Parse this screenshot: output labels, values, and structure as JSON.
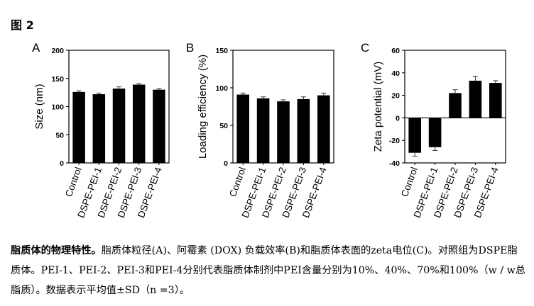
{
  "figure": {
    "title": "图 2"
  },
  "chart_data": [
    {
      "panel_label": "A",
      "type": "bar",
      "categories": [
        "Control",
        "DSPE-PEI-1",
        "DSPE-PEI-2",
        "DSPE-PEI-3",
        "DSPE-PEI-4"
      ],
      "values": [
        126,
        122,
        132,
        139,
        130
      ],
      "errors": [
        2,
        2,
        3,
        2,
        2
      ],
      "ylabel": "Size (nm)",
      "ylim": [
        0,
        200
      ],
      "yticks": [
        0,
        50,
        100,
        150,
        200
      ],
      "bar_color": "#000000"
    },
    {
      "panel_label": "B",
      "type": "bar",
      "categories": [
        "Control",
        "DSPE-PEI-1",
        "DSPE-PEI-2",
        "DSPE-PEI-3",
        "DSPE-PEI-4"
      ],
      "values": [
        91,
        86,
        82,
        85,
        90
      ],
      "errors": [
        2,
        2,
        2,
        3,
        3
      ],
      "ylabel": "Loading efficiency (%)",
      "ylim": [
        0,
        150
      ],
      "yticks": [
        0,
        50,
        100,
        150
      ],
      "bar_color": "#000000"
    },
    {
      "panel_label": "C",
      "type": "bar",
      "categories": [
        "Control",
        "DSPE-PEI-1",
        "DSPE-PEI-2",
        "DSPE-PEI-3",
        "DSPE-PEI-4"
      ],
      "values": [
        -31,
        -26,
        22,
        33,
        31
      ],
      "errors": [
        3,
        3,
        3,
        4,
        2
      ],
      "ylabel": "Zeta potential (mV)",
      "ylim": [
        -40,
        60
      ],
      "yticks": [
        -40,
        -20,
        0,
        20,
        40,
        60
      ],
      "bar_color": "#000000"
    }
  ],
  "caption": {
    "lead": "脂质体的物理特性。",
    "body": "脂质体粒径(A)、阿霉素 (DOX) 负载效率(B)和脂质体表面的zeta电位(C)。对照组为DSPE脂质体。PEI-1、PEI-2、PEI-3和PEI-4分别代表脂质体制剂中PEI含量分别为10%、40%、70%和100%（w / w总脂质）。数据表示平均值±SD（n =3）。"
  }
}
